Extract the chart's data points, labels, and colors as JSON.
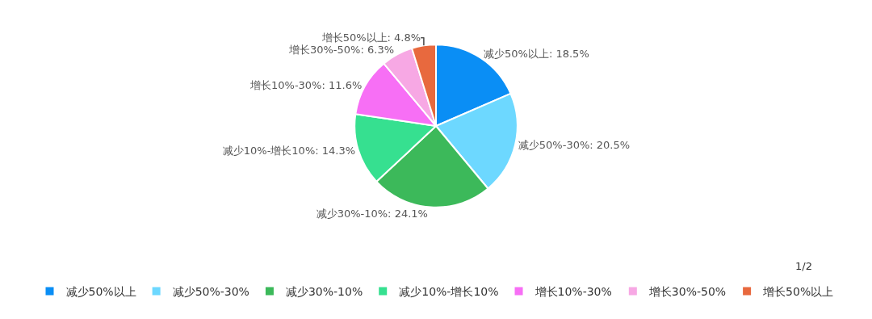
{
  "chart_data": {
    "type": "pie",
    "categories": [
      "减少50%以上",
      "减少50%-30%",
      "减少30%-10%",
      "减少10%-增长10%",
      "增长10%-30%",
      "增长30%-50%",
      "增长50%以上"
    ],
    "values": [
      18.5,
      20.5,
      24.1,
      14.3,
      11.6,
      6.3,
      4.8
    ],
    "value_labels": [
      "减少50%以上: 18.5%",
      "减少50%-30%: 20.5%",
      "减少30%-10%: 24.1%",
      "减少10%-增长10%: 14.3%",
      "增长10%-30%: 11.6%",
      "增长30%-50%: 6.3%",
      "增长50%以上: 4.8%"
    ],
    "colors": [
      "#0a8ef5",
      "#6dd8ff",
      "#3cb95a",
      "#36e090",
      "#f76ff5",
      "#f7a8e4",
      "#e8693e"
    ],
    "legend": "bottom",
    "annotations": [
      "1/2"
    ]
  }
}
